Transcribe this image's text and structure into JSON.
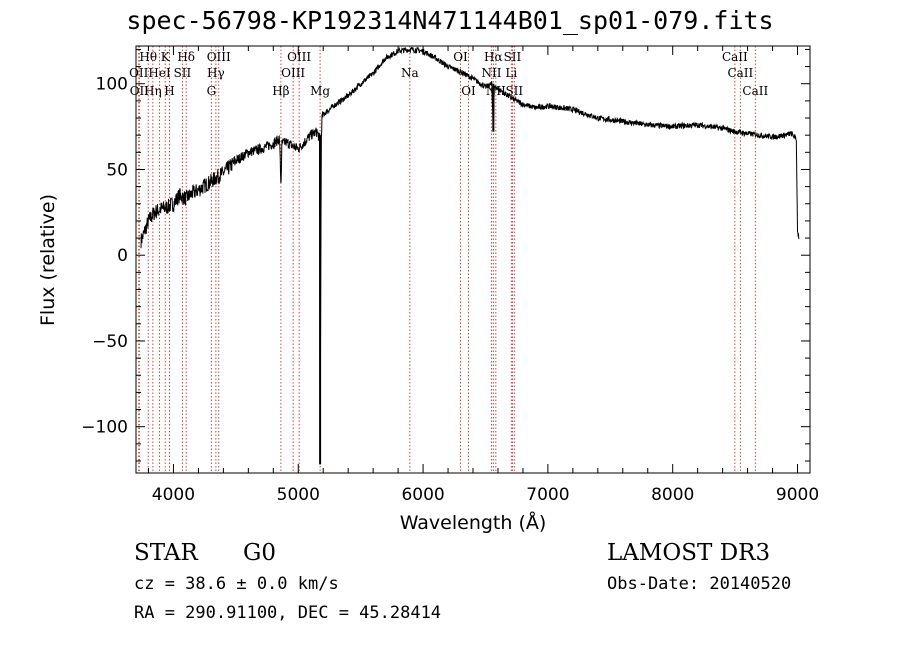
{
  "header": {
    "title": "spec-56798-KP192314N471144B01_sp01-079.fits"
  },
  "info": {
    "class_label": "STAR",
    "subclass_label": "G0",
    "survey": "LAMOST DR3",
    "cz_line": "cz = 38.6 ± 0.0 km/s",
    "obs_date": "Obs-Date: 20140520",
    "coord_line": "RA = 290.91100, DEC =  45.28414"
  },
  "chart_data": {
    "type": "line",
    "title": "spec-56798-KP192314N471144B01_sp01-079.fits",
    "xlabel": "Wavelength (Å)",
    "ylabel": "Flux (relative)",
    "xlim": [
      3700,
      9100
    ],
    "ylim": [
      -127,
      122
    ],
    "xticks": [
      4000,
      5000,
      6000,
      7000,
      8000,
      9000
    ],
    "yticks": [
      -100,
      -50,
      0,
      50,
      100
    ],
    "series": [
      {
        "name": "flux",
        "x": [
          3700,
          3750,
          3800,
          3850,
          3900,
          3950,
          4000,
          4050,
          4100,
          4150,
          4200,
          4300,
          4400,
          4500,
          4600,
          4700,
          4800,
          4850,
          4861,
          4870,
          4900,
          5000,
          5100,
          5150,
          5170,
          5175,
          5183,
          5185,
          5190,
          5200,
          5300,
          5400,
          5500,
          5600,
          5700,
          5800,
          5900,
          6000,
          6100,
          6200,
          6300,
          6400,
          6500,
          6550,
          6563,
          6570,
          6600,
          6700,
          6800,
          6900,
          7000,
          7200,
          7400,
          7600,
          7800,
          8000,
          8200,
          8400,
          8500,
          8600,
          8700,
          8800,
          8900,
          8950,
          8990,
          9000,
          9010
        ],
        "y": [
          3,
          10,
          20,
          25,
          27,
          28,
          30,
          35,
          33,
          36,
          38,
          43,
          48,
          55,
          60,
          62,
          65,
          68,
          40,
          65,
          66,
          62,
          70,
          72,
          68,
          -122,
          30,
          70,
          80,
          82,
          88,
          93,
          100,
          106,
          115,
          119,
          120,
          119,
          115,
          110,
          107,
          103,
          98,
          100,
          72,
          98,
          97,
          92,
          88,
          86,
          87,
          85,
          80,
          78,
          76,
          75,
          76,
          74,
          72,
          71,
          70,
          69,
          70,
          71,
          68,
          15,
          10
        ]
      }
    ],
    "lines": [
      {
        "w": 3722,
        "label": "OII",
        "row": 2
      },
      {
        "w": 3727,
        "label": "OII",
        "row": 3
      },
      {
        "w": 3798,
        "label": "Hθ",
        "row": 1
      },
      {
        "w": 3835,
        "label": "Hη",
        "row": 3
      },
      {
        "w": 3889,
        "label": "HeI",
        "row": 2
      },
      {
        "w": 3934,
        "label": "K",
        "row": 1
      },
      {
        "w": 3968,
        "label": "H",
        "row": 3
      },
      {
        "w": 4072,
        "label": "SII",
        "row": 2
      },
      {
        "w": 4102,
        "label": "Hδ",
        "row": 1
      },
      {
        "w": 4304,
        "label": "G",
        "row": 3
      },
      {
        "w": 4340,
        "label": "Hγ",
        "row": 2
      },
      {
        "w": 4363,
        "label": "OIII",
        "row": 1
      },
      {
        "w": 4861,
        "label": "Hβ",
        "row": 3
      },
      {
        "w": 4959,
        "label": "OIII",
        "row": 2
      },
      {
        "w": 5007,
        "label": "OIII",
        "row": 1
      },
      {
        "w": 5175,
        "label": "Mg",
        "row": 3
      },
      {
        "w": 5894,
        "label": "Na",
        "row": 2
      },
      {
        "w": 6300,
        "label": "OI",
        "row": 1
      },
      {
        "w": 6364,
        "label": "OI",
        "row": 3
      },
      {
        "w": 6548,
        "label": "NII",
        "row": 2
      },
      {
        "w": 6563,
        "label": "Hα",
        "row": 1
      },
      {
        "w": 6583,
        "label": "NII",
        "row": 3
      },
      {
        "w": 6707,
        "label": "Li",
        "row": 2
      },
      {
        "w": 6716,
        "label": "SII",
        "row": 1
      },
      {
        "w": 6731,
        "label": "SII",
        "row": 3
      },
      {
        "w": 8498,
        "label": "CaII",
        "row": 1
      },
      {
        "w": 8542,
        "label": "CaII",
        "row": 2
      },
      {
        "w": 8662,
        "label": "CaII",
        "row": 3
      }
    ]
  }
}
